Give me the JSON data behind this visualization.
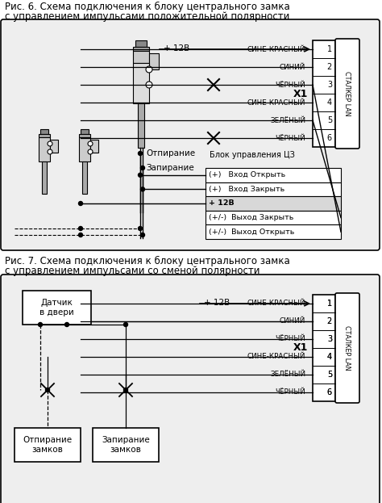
{
  "fig_width": 4.74,
  "fig_height": 6.23,
  "bg_color": "#ffffff",
  "title1_line1": "Рис. 6. Схема подключения к блоку центрального замка",
  "title1_line2": "с управлением импульсами положительной полярности",
  "title2_line1": "Рис. 7. Схема подключения к блоку центрального замка",
  "title2_line2": "с управлением импульсами со сменой полярности",
  "wire_labels": [
    "СИНЕ-КРАСНЫЙ",
    "СИНИЙ",
    "ЧЁРНЫЙ",
    "СИНЕ-КРАСНЫЙ",
    "ЗЕЛЁНЫЙ",
    "ЧЁРНЫЙ"
  ],
  "connector_label": "Х1",
  "stalker_label": "СТАЛКЕР LAN",
  "plus12v": "+ 12В",
  "otpiranie": "Отпирание",
  "zapiranie": "Запирание",
  "blok_label": "Блок управления ЦЗ",
  "blok_rows": [
    {
      "text": "(+)   Вход Открыть",
      "bold": false
    },
    {
      "text": "(+)   Вход Закрыть",
      "bold": false
    },
    {
      "text": "+ 12В",
      "bold": true
    },
    {
      "text": "(+/-)  Выход Закрыть",
      "bold": false
    },
    {
      "text": "(+/-)  Выход Открыть",
      "bold": false
    }
  ],
  "datchik": "Датчик\nв двери",
  "otpiranie2": "Отпирание\nзамков",
  "zapiranie2": "Запирание\nзамков"
}
